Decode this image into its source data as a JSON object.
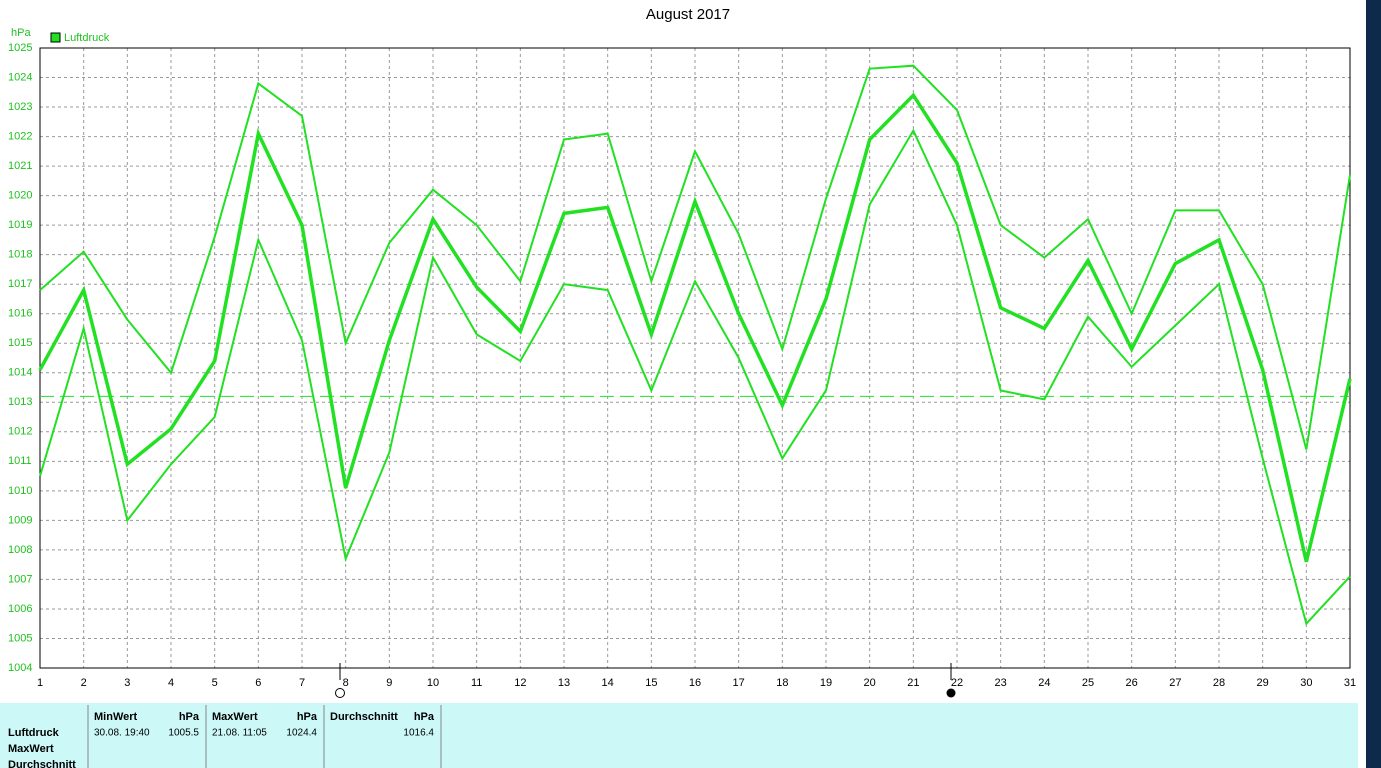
{
  "chart_data": {
    "type": "line",
    "title": "August 2017",
    "ylabel": "hPa",
    "x": [
      1,
      2,
      3,
      4,
      5,
      6,
      7,
      8,
      9,
      10,
      11,
      12,
      13,
      14,
      15,
      16,
      17,
      18,
      19,
      20,
      21,
      22,
      23,
      24,
      25,
      26,
      27,
      28,
      29,
      30,
      31
    ],
    "xlim": [
      1,
      31
    ],
    "xticks": [
      1,
      2,
      3,
      4,
      5,
      6,
      7,
      8,
      9,
      10,
      11,
      12,
      13,
      14,
      15,
      16,
      17,
      18,
      19,
      20,
      21,
      22,
      23,
      24,
      25,
      26,
      27,
      28,
      29,
      30,
      31
    ],
    "ylim": [
      1004,
      1025
    ],
    "yticks": [
      1004,
      1005,
      1006,
      1007,
      1008,
      1009,
      1010,
      1011,
      1012,
      1013,
      1014,
      1015,
      1016,
      1017,
      1018,
      1019,
      1020,
      1021,
      1022,
      1023,
      1024,
      1025
    ],
    "grid": true,
    "legend": "top-left",
    "reference_line": 1013.2,
    "series": [
      {
        "name": "Luftdruck",
        "color": "#22e022",
        "values": [
          1014.1,
          1016.8,
          1010.9,
          1012.1,
          1014.4,
          1022.1,
          1019.0,
          1010.1,
          1015.1,
          1019.2,
          1016.9,
          1015.4,
          1019.4,
          1019.6,
          1015.3,
          1019.8,
          1016.0,
          1012.9,
          1016.5,
          1021.9,
          1023.4,
          1021.1,
          1016.2,
          1015.5,
          1017.8,
          1014.8,
          1017.7,
          1018.5,
          1014.1,
          1007.6,
          1013.8
        ],
        "max": [
          1016.8,
          1018.1,
          1015.8,
          1014.0,
          1018.6,
          1023.8,
          1022.7,
          1015.0,
          1018.4,
          1020.2,
          1019.0,
          1017.1,
          1021.9,
          1022.1,
          1017.1,
          1021.5,
          1018.7,
          1014.8,
          1019.9,
          1024.3,
          1024.4,
          1022.9,
          1019.0,
          1017.9,
          1019.2,
          1016.0,
          1019.5,
          1019.5,
          1017.0,
          1011.4,
          1020.7
        ],
        "min": [
          1010.5,
          1015.5,
          1009.0,
          1010.9,
          1012.5,
          1018.5,
          1015.1,
          1007.7,
          1011.3,
          1017.9,
          1015.3,
          1014.4,
          1017.0,
          1016.8,
          1013.4,
          1017.1,
          1014.5,
          1011.1,
          1013.4,
          1019.7,
          1022.2,
          1019.0,
          1013.4,
          1013.1,
          1015.9,
          1014.2,
          1015.6,
          1017.0,
          1011.1,
          1005.5,
          1007.1
        ]
      }
    ]
  },
  "table": {
    "row_labels": [
      "Luftdruck",
      "MaxWert",
      "Durchschnitt"
    ],
    "columns": [
      {
        "header": "MinWert",
        "unit": "hPa",
        "time": "30.08.  19:40",
        "value": "1005.5"
      },
      {
        "header": "MaxWert",
        "unit": "hPa",
        "time": "21.08.  11:05",
        "value": "1024.4"
      },
      {
        "header": "Durchschnitt",
        "unit": "hPa",
        "time": "",
        "value": "1016.4"
      }
    ]
  }
}
